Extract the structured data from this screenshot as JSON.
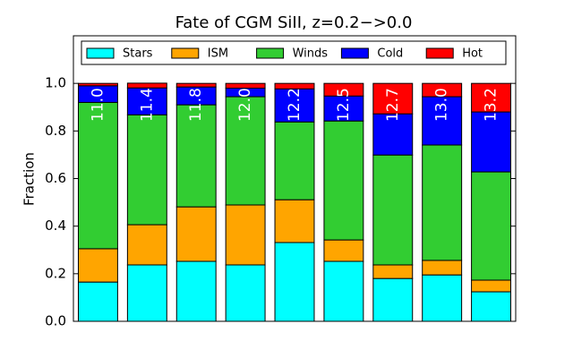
{
  "chart_data": {
    "type": "stacked_bar",
    "title": "Fate of CGM SiII, z=0.2−>0.0",
    "y_label": "Fraction",
    "categories": [
      "11.0",
      "11.4",
      "11.8",
      "12.0",
      "12.2",
      "12.5",
      "12.7",
      "13.0",
      "13.2"
    ],
    "series": [
      {
        "name": "Stars",
        "color": "#00ffff",
        "values": [
          0.165,
          0.237,
          0.252,
          0.237,
          0.331,
          0.252,
          0.18,
          0.195,
          0.124
        ]
      },
      {
        "name": "ISM",
        "color": "#ffa500",
        "values": [
          0.14,
          0.169,
          0.229,
          0.252,
          0.18,
          0.09,
          0.057,
          0.061,
          0.049
        ]
      },
      {
        "name": "Winds",
        "color": "#32cd32",
        "values": [
          0.615,
          0.462,
          0.429,
          0.455,
          0.327,
          0.5,
          0.462,
          0.485,
          0.455
        ]
      },
      {
        "name": "Cold",
        "color": "#0000ff",
        "values": [
          0.07,
          0.113,
          0.075,
          0.036,
          0.139,
          0.105,
          0.173,
          0.203,
          0.252
        ]
      },
      {
        "name": "Hot",
        "color": "#ff0000",
        "values": [
          0.01,
          0.02,
          0.015,
          0.02,
          0.023,
          0.053,
          0.128,
          0.056,
          0.12
        ]
      }
    ],
    "ylim": [
      0,
      1.2
    ],
    "yticks": [
      {
        "value": 0,
        "label": "0.0"
      },
      {
        "value": 0.2,
        "label": "0.2"
      },
      {
        "value": 0.4,
        "label": "0.4"
      },
      {
        "value": 0.6,
        "label": "0.6"
      },
      {
        "value": 0.8,
        "label": "0.8"
      },
      {
        "value": 1.0,
        "label": "1.0"
      }
    ],
    "legend": "upper center"
  }
}
